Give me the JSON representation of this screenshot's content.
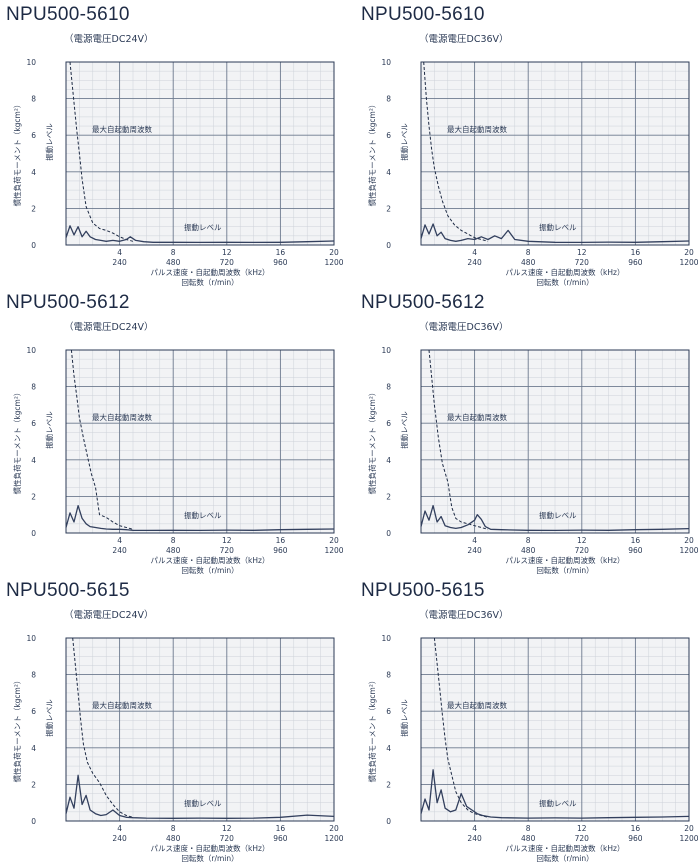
{
  "panels": [
    {
      "title": "NPU500-5610",
      "subtitle": "（電源電圧DC24V）",
      "chart_data": {
        "type": "line",
        "ylabel": "慣性負荷モーメント（kgcm²）",
        "ylabel2": "振動レベル",
        "xlabel": "パルス速度・自起動周波数（kHz）",
        "xlabel2": "回転数（r/min）",
        "xlim": [
          0,
          20
        ],
        "ylim": [
          0,
          10
        ],
        "x_ticks": [
          "4",
          "8",
          "12",
          "16",
          "20"
        ],
        "x_ticks2": [
          "240",
          "480",
          "720",
          "960",
          "1200"
        ],
        "y_ticks": [
          "0",
          "2",
          "4",
          "6",
          "8",
          "10"
        ],
        "grid": true,
        "annotations": [
          "最大自起動周波数",
          "振動レベル"
        ],
        "series": [
          {
            "name": "最大自起動周波数",
            "style": "dashed",
            "x": [
              0.3,
              0.5,
              0.8,
              1.0,
              1.2,
              1.5,
              2.0,
              2.5,
              3.0,
              3.5,
              4.0,
              4.5,
              5.0
            ],
            "y": [
              10,
              8.5,
              6.3,
              5.0,
              3.6,
              2.1,
              1.2,
              0.9,
              0.8,
              0.65,
              0.45,
              0.3,
              0.2
            ]
          },
          {
            "name": "振動レベル",
            "style": "solid",
            "x": [
              0,
              0.3,
              0.6,
              0.9,
              1.2,
              1.5,
              1.8,
              2.2,
              2.6,
              3.0,
              3.5,
              4.0,
              4.5,
              4.8,
              5.2,
              5.8,
              6.5,
              8,
              10,
              12,
              14,
              16,
              18,
              20
            ],
            "y": [
              0.4,
              1.05,
              0.55,
              1.0,
              0.45,
              0.75,
              0.45,
              0.3,
              0.25,
              0.2,
              0.25,
              0.2,
              0.3,
              0.45,
              0.25,
              0.18,
              0.15,
              0.15,
              0.14,
              0.15,
              0.14,
              0.15,
              0.18,
              0.22
            ]
          }
        ]
      }
    },
    {
      "title": "NPU500-5610",
      "subtitle": "（電源電圧DC36V）",
      "chart_data": {
        "type": "line",
        "ylabel": "慣性負荷モーメント（kgcm²）",
        "ylabel2": "振動レベル",
        "xlabel": "パルス速度・自起動周波数（kHz）",
        "xlabel2": "回転数（r/min）",
        "xlim": [
          0,
          20
        ],
        "ylim": [
          0,
          10
        ],
        "x_ticks": [
          "4",
          "8",
          "12",
          "16",
          "20"
        ],
        "x_ticks2": [
          "240",
          "480",
          "720",
          "960",
          "1200"
        ],
        "y_ticks": [
          "0",
          "2",
          "4",
          "6",
          "8",
          "10"
        ],
        "grid": true,
        "annotations": [
          "最大自起動周波数",
          "振動レベル"
        ],
        "series": [
          {
            "name": "最大自起動周波数",
            "style": "dashed",
            "x": [
              0.2,
              0.4,
              0.6,
              0.8,
              1.0,
              1.3,
              1.6,
              2.0,
              2.5,
              3.0,
              3.5,
              4.0,
              4.5,
              5.0
            ],
            "y": [
              10,
              8.0,
              6.5,
              5.2,
              4.2,
              3.2,
              2.4,
              1.6,
              1.1,
              0.8,
              0.6,
              0.4,
              0.3,
              0.2
            ]
          },
          {
            "name": "振動レベル",
            "style": "solid",
            "x": [
              0,
              0.3,
              0.6,
              0.9,
              1.2,
              1.5,
              1.8,
              2.2,
              2.6,
              3.0,
              3.5,
              4.0,
              4.5,
              5.0,
              5.5,
              6.0,
              6.5,
              7.0,
              8,
              10,
              12,
              14,
              16,
              18,
              20
            ],
            "y": [
              0.35,
              1.1,
              0.6,
              1.15,
              0.5,
              0.7,
              0.35,
              0.25,
              0.2,
              0.25,
              0.35,
              0.3,
              0.45,
              0.3,
              0.5,
              0.35,
              0.8,
              0.3,
              0.2,
              0.15,
              0.14,
              0.16,
              0.15,
              0.18,
              0.22
            ]
          }
        ]
      }
    },
    {
      "title": "NPU500-5612",
      "subtitle": "（電源電圧DC24V）",
      "chart_data": {
        "type": "line",
        "ylabel": "慣性負荷モーメント（kgcm²）",
        "ylabel2": "振動レベル",
        "xlabel": "パルス速度・自起動周波数（kHz）",
        "xlabel2": "回転数（r/min）",
        "xlim": [
          0,
          20
        ],
        "ylim": [
          0,
          10
        ],
        "x_ticks": [
          "4",
          "8",
          "12",
          "16",
          "20"
        ],
        "x_ticks2": [
          "240",
          "480",
          "720",
          "960",
          "1200"
        ],
        "y_ticks": [
          "0",
          "2",
          "4",
          "6",
          "8",
          "10"
        ],
        "grid": true,
        "annotations": [
          "最大自起動周波数",
          "振動レベル"
        ],
        "series": [
          {
            "name": "最大自起動周波数",
            "style": "dashed",
            "x": [
              0.4,
              0.6,
              0.8,
              1.0,
              1.3,
              1.6,
              1.9,
              2.2,
              2.5,
              3.0,
              3.5,
              4.0,
              5.0
            ],
            "y": [
              10,
              8.6,
              7.5,
              6.3,
              5.2,
              4.2,
              3.2,
              2.5,
              1.0,
              0.85,
              0.6,
              0.4,
              0.2
            ]
          },
          {
            "name": "振動レベル",
            "style": "solid",
            "x": [
              0,
              0.3,
              0.6,
              0.9,
              1.2,
              1.5,
              1.8,
              2.2,
              2.6,
              3.0,
              3.5,
              4.0,
              4.5,
              5.0,
              6.0,
              8,
              10,
              12,
              14,
              16,
              18,
              20
            ],
            "y": [
              0.3,
              1.1,
              0.6,
              1.5,
              0.8,
              0.5,
              0.35,
              0.3,
              0.25,
              0.22,
              0.2,
              0.2,
              0.18,
              0.15,
              0.14,
              0.15,
              0.14,
              0.16,
              0.15,
              0.18,
              0.2,
              0.22
            ]
          }
        ]
      }
    },
    {
      "title": "NPU500-5612",
      "subtitle": "（電源電圧DC36V）",
      "chart_data": {
        "type": "line",
        "ylabel": "慣性負荷モーメント（kgcm²）",
        "ylabel2": "振動レベル",
        "xlabel": "パルス速度・自起動周波数（kHz）",
        "xlabel2": "回転数（r/min）",
        "xlim": [
          0,
          20
        ],
        "ylim": [
          0,
          10
        ],
        "x_ticks": [
          "4",
          "8",
          "12",
          "16",
          "20"
        ],
        "x_ticks2": [
          "240",
          "480",
          "720",
          "960",
          "1200"
        ],
        "y_ticks": [
          "0",
          "2",
          "4",
          "6",
          "8",
          "10"
        ],
        "grid": true,
        "annotations": [
          "最大自起動周波数",
          "振動レベル"
        ],
        "series": [
          {
            "name": "最大自起動周波数",
            "style": "dashed",
            "x": [
              0.6,
              0.8,
              1.0,
              1.3,
              1.6,
              2.0,
              2.3,
              2.6,
              3.0,
              3.5,
              4.0,
              4.5,
              5.0
            ],
            "y": [
              10,
              8.5,
              7.0,
              5.2,
              3.8,
              2.8,
              1.4,
              0.8,
              0.6,
              0.5,
              0.4,
              0.3,
              0.2
            ]
          },
          {
            "name": "振動レベル",
            "style": "solid",
            "x": [
              0,
              0.3,
              0.6,
              0.9,
              1.2,
              1.5,
              1.8,
              2.2,
              2.6,
              3.0,
              3.5,
              4.0,
              4.2,
              4.5,
              4.8,
              5.2,
              6.0,
              8,
              10,
              12,
              14,
              16,
              18,
              20
            ],
            "y": [
              0.35,
              1.2,
              0.7,
              1.5,
              0.6,
              0.9,
              0.4,
              0.3,
              0.25,
              0.3,
              0.45,
              0.7,
              1.0,
              0.75,
              0.35,
              0.2,
              0.18,
              0.15,
              0.14,
              0.16,
              0.15,
              0.18,
              0.2,
              0.24
            ]
          }
        ]
      }
    },
    {
      "title": "NPU500-5615",
      "subtitle": "（電源電圧DC24V）",
      "chart_data": {
        "type": "line",
        "ylabel": "慣性負荷モーメント（kgcm²）",
        "ylabel2": "振動レベル",
        "xlabel": "パルス速度・自起動周波数（kHz）",
        "xlabel2": "回転数（r/min）",
        "xlim": [
          0,
          20
        ],
        "ylim": [
          0,
          10
        ],
        "x_ticks": [
          "4",
          "8",
          "12",
          "16",
          "20"
        ],
        "x_ticks2": [
          "240",
          "480",
          "720",
          "960",
          "1200"
        ],
        "y_ticks": [
          "0",
          "2",
          "4",
          "6",
          "8",
          "10"
        ],
        "grid": true,
        "annotations": [
          "最大自起動周波数",
          "振動レベル"
        ],
        "series": [
          {
            "name": "最大自起動周波数",
            "style": "dashed",
            "x": [
              0.5,
              0.7,
              0.9,
              1.1,
              1.3,
              1.6,
              2.0,
              2.5,
              3.0,
              3.5,
              4.0,
              4.5,
              5.0
            ],
            "y": [
              10,
              8.5,
              7.0,
              5.5,
              4.2,
              3.2,
              2.6,
              2.1,
              1.4,
              0.9,
              0.5,
              0.3,
              0.2
            ]
          },
          {
            "name": "振動レベル",
            "style": "solid",
            "x": [
              0,
              0.3,
              0.6,
              0.9,
              1.2,
              1.5,
              1.8,
              2.2,
              2.6,
              3.0,
              3.5,
              4.0,
              4.5,
              5.0,
              6.0,
              8,
              10,
              12,
              14,
              16,
              18,
              20
            ],
            "y": [
              0.4,
              1.3,
              0.7,
              2.5,
              0.9,
              1.4,
              0.6,
              0.4,
              0.3,
              0.35,
              0.6,
              0.3,
              0.2,
              0.18,
              0.16,
              0.15,
              0.16,
              0.15,
              0.16,
              0.2,
              0.32,
              0.25
            ]
          }
        ]
      }
    },
    {
      "title": "NPU500-5615",
      "subtitle": "（電源電圧DC36V）",
      "chart_data": {
        "type": "line",
        "ylabel": "慣性負荷モーメント（kgcm²）",
        "ylabel2": "振動レベル",
        "xlabel": "パルス速度・自起動周波数（kHz）",
        "xlabel2": "回転数（r/min）",
        "xlim": [
          0,
          20
        ],
        "ylim": [
          0,
          10
        ],
        "x_ticks": [
          "4",
          "8",
          "12",
          "16",
          "20"
        ],
        "x_ticks2": [
          "240",
          "480",
          "720",
          "960",
          "1200"
        ],
        "y_ticks": [
          "0",
          "2",
          "4",
          "6",
          "8",
          "10"
        ],
        "grid": true,
        "annotations": [
          "最大自起動周波数",
          "振動レベル"
        ],
        "series": [
          {
            "name": "最大自起動周波数",
            "style": "dashed",
            "x": [
              1.0,
              1.2,
              1.4,
              1.6,
              1.8,
              2.0,
              2.3,
              2.6,
              3.0,
              3.5,
              4.0,
              4.5,
              5.0
            ],
            "y": [
              10,
              8.6,
              7.2,
              5.8,
              4.5,
              3.4,
              2.5,
              1.6,
              1.0,
              0.6,
              0.4,
              0.3,
              0.2
            ]
          },
          {
            "name": "振動レベル",
            "style": "solid",
            "x": [
              0,
              0.3,
              0.6,
              0.9,
              1.2,
              1.5,
              1.8,
              2.2,
              2.6,
              3.0,
              3.4,
              3.8,
              4.2,
              4.6,
              5.2,
              6.0,
              8,
              10,
              12,
              14,
              16,
              18,
              20
            ],
            "y": [
              0.4,
              1.2,
              0.6,
              2.8,
              1.0,
              1.7,
              0.7,
              0.5,
              0.6,
              1.5,
              0.8,
              0.6,
              0.4,
              0.3,
              0.22,
              0.18,
              0.16,
              0.17,
              0.16,
              0.18,
              0.2,
              0.22,
              0.25
            ]
          }
        ]
      }
    }
  ]
}
